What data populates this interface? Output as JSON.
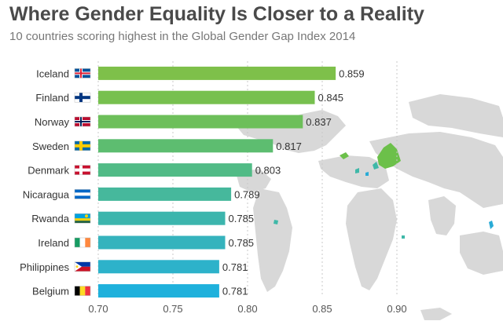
{
  "title": "Where Gender Equality Is Closer to a Reality",
  "subtitle": "10 countries scoring highest in the Global Gender Gap Index 2014",
  "chart_data": {
    "type": "bar",
    "orientation": "horizontal",
    "title": "Where Gender Equality Is Closer to a Reality",
    "subtitle": "10 countries scoring highest in the Global Gender Gap Index 2014",
    "xlabel": "",
    "ylabel": "",
    "xlim": [
      0.7,
      0.9
    ],
    "xticks": [
      "0.70",
      "0.75",
      "0.80",
      "0.85",
      "0.90"
    ],
    "grid": true,
    "categories": [
      "Iceland",
      "Finland",
      "Norway",
      "Sweden",
      "Denmark",
      "Nicaragua",
      "Rwanda",
      "Ireland",
      "Philippines",
      "Belgium"
    ],
    "values": [
      0.859,
      0.845,
      0.837,
      0.817,
      0.803,
      0.789,
      0.785,
      0.785,
      0.781,
      0.781
    ],
    "value_labels": [
      "0.859",
      "0.845",
      "0.837",
      "0.817",
      "0.803",
      "0.789",
      "0.785",
      "0.785",
      "0.781",
      "0.781"
    ],
    "bar_colors": [
      "#7ec04a",
      "#77c04f",
      "#6dbf5a",
      "#5dbd70",
      "#51bb86",
      "#46b89c",
      "#3cb5ad",
      "#35b3bd",
      "#2db2ca",
      "#1fb1dc"
    ],
    "flag_icons": [
      "iceland-flag-icon",
      "finland-flag-icon",
      "norway-flag-icon",
      "sweden-flag-icon",
      "denmark-flag-icon",
      "nicaragua-flag-icon",
      "rwanda-flag-icon",
      "ireland-flag-icon",
      "philippines-flag-icon",
      "belgium-flag-icon"
    ]
  }
}
